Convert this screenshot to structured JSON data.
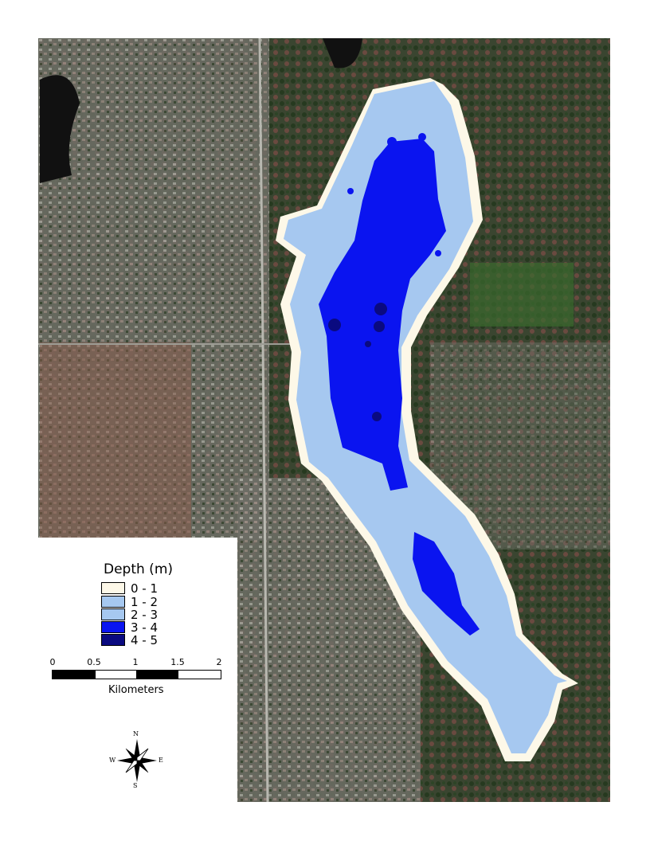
{
  "legend": {
    "title": "Depth (m)",
    "classes": [
      {
        "label": "0 - 1",
        "color": "#fdf8e8"
      },
      {
        "label": "1 - 2",
        "color": "#a6c8f0"
      },
      {
        "label": "2 - 3",
        "color": "#a6c8f0"
      },
      {
        "label": "3 - 4",
        "color": "#0a14f0"
      },
      {
        "label": "4 - 5",
        "color": "#0a0a80"
      }
    ]
  },
  "scale_bar": {
    "ticks": [
      "0",
      "0.5",
      "1",
      "1.5",
      "2"
    ],
    "units": "Kilometers"
  },
  "north_arrow": {
    "n": "N",
    "s": "S",
    "e": "E",
    "w": "W",
    "icon": "compass-rose-icon"
  },
  "colors": {
    "land_base": "#4a4a3c",
    "land_green": "#2f4a2a",
    "land_red": "#8a5a4a",
    "urban": "#8c8c88"
  }
}
